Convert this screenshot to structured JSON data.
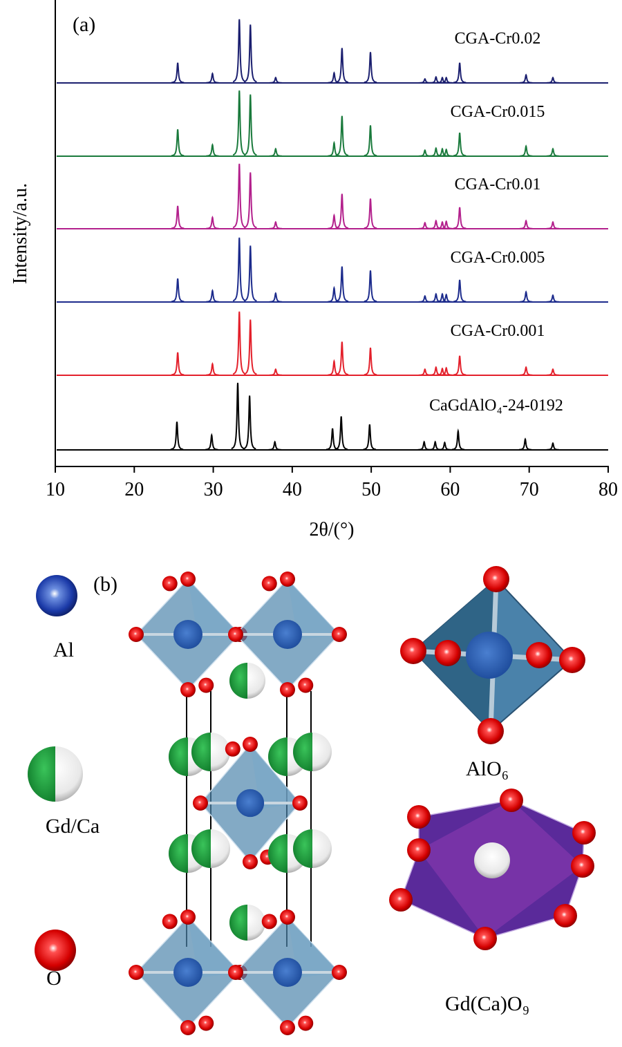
{
  "chart_data": {
    "type": "line",
    "panel_label": "(a)",
    "xlabel": "2θ/(°)",
    "ylabel": "Intensity/a.u.",
    "xlim": [
      10,
      80
    ],
    "xticks": [
      10,
      20,
      30,
      40,
      50,
      60,
      70,
      80
    ],
    "series": [
      {
        "name": "CGA-Cr0.02",
        "color": "#1b1f6f",
        "peak_positions": [
          25.5,
          29.9,
          33.3,
          34.7,
          37.9,
          45.3,
          46.3,
          49.9,
          56.8,
          58.2,
          59.0,
          59.5,
          61.2,
          69.6,
          73.0
        ],
        "peak_heights": [
          30,
          14,
          95,
          87,
          8,
          15,
          52,
          46,
          6,
          9,
          8,
          8,
          30,
          12,
          8
        ]
      },
      {
        "name": "CGA-Cr0.015",
        "color": "#1a7a3c",
        "peak_positions": [
          25.5,
          29.9,
          33.3,
          34.7,
          37.9,
          45.3,
          46.3,
          49.9,
          56.8,
          58.2,
          59.0,
          59.5,
          61.2,
          69.6,
          73.0
        ],
        "peak_heights": [
          40,
          17,
          98,
          92,
          11,
          20,
          60,
          46,
          9,
          12,
          11,
          10,
          35,
          15,
          11
        ]
      },
      {
        "name": "CGA-Cr0.01",
        "color": "#b3208c",
        "peak_positions": [
          25.5,
          29.9,
          33.3,
          34.7,
          37.9,
          45.3,
          46.3,
          49.9,
          56.8,
          58.2,
          59.0,
          59.5,
          61.2,
          69.6,
          73.0
        ],
        "peak_heights": [
          34,
          17,
          97,
          84,
          10,
          20,
          52,
          45,
          9,
          12,
          10,
          11,
          32,
          12,
          10
        ]
      },
      {
        "name": "CGA-Cr0.005",
        "color": "#1c2b8c",
        "peak_positions": [
          25.5,
          29.9,
          33.3,
          34.7,
          37.9,
          45.3,
          46.3,
          49.9,
          56.8,
          58.2,
          59.0,
          59.5,
          61.2,
          69.6,
          73.0
        ],
        "peak_heights": [
          35,
          17,
          96,
          84,
          13,
          21,
          53,
          47,
          9,
          12,
          12,
          11,
          33,
          15,
          10
        ]
      },
      {
        "name": "CGA-Cr0.001",
        "color": "#e3202b",
        "peak_positions": [
          25.5,
          29.9,
          33.3,
          34.7,
          37.9,
          45.3,
          46.3,
          49.9,
          56.8,
          58.2,
          59.0,
          59.5,
          61.2,
          69.6,
          73.0
        ],
        "peak_heights": [
          34,
          17,
          95,
          83,
          9,
          21,
          50,
          41,
          9,
          12,
          10,
          11,
          29,
          12,
          9
        ]
      },
      {
        "name": "CaGdAlO₄-24-0192",
        "color": "#000000",
        "peak_positions": [
          25.4,
          29.8,
          33.1,
          34.6,
          37.8,
          45.1,
          46.2,
          49.8,
          56.7,
          58.1,
          59.3,
          61.0,
          69.5,
          73.0
        ],
        "peak_heights": [
          42,
          22,
          100,
          81,
          12,
          32,
          50,
          38,
          12,
          12,
          11,
          28,
          16,
          10
        ]
      }
    ]
  },
  "structure": {
    "panel_label": "(b)",
    "legend": [
      "Al",
      "Gd/Ca",
      "O"
    ],
    "polyhedra": [
      "AlO₆",
      "Gd(Ca)O₉"
    ]
  }
}
